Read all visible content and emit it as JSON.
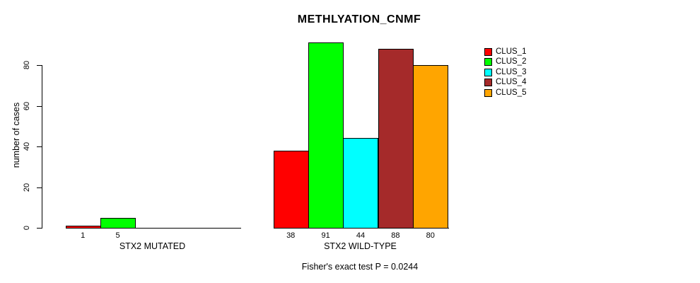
{
  "chart_data": {
    "type": "bar",
    "title": "METHLYATION_CNMF",
    "ylabel": "number of cases",
    "xlabel": "",
    "subtitle": "Fisher's exact test P = 0.0244",
    "ylim": [
      0,
      80
    ],
    "yticks": [
      0,
      20,
      40,
      60,
      80
    ],
    "grid": false,
    "legend_position": "right",
    "legend_labels": [
      "CLUS_1",
      "CLUS_2",
      "CLUS_3",
      "CLUS_4",
      "CLUS_5"
    ],
    "colors": [
      "#ff0000",
      "#00ff00",
      "#00ffff",
      "#a52a2a",
      "#ffa500"
    ],
    "groups": [
      {
        "label": "STX2 MUTATED",
        "values": [
          1,
          5,
          0,
          0,
          0
        ]
      },
      {
        "label": "STX2 WILD-TYPE",
        "values": [
          38,
          91,
          44,
          88,
          80
        ]
      }
    ]
  }
}
